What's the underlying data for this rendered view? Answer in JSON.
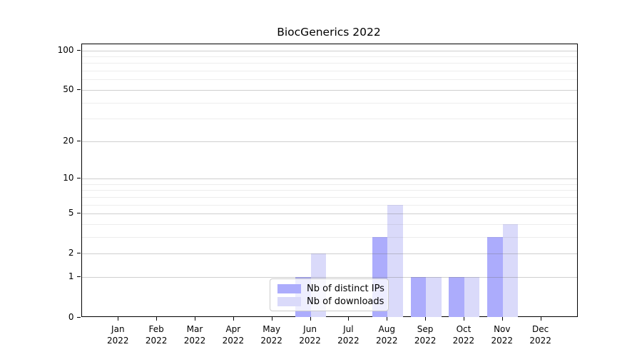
{
  "chart_data": {
    "type": "bar",
    "title": "BiocGenerics 2022",
    "categories": [
      "Jan 2022",
      "Feb 2022",
      "Mar 2022",
      "Apr 2022",
      "May 2022",
      "Jun 2022",
      "Jul 2022",
      "Aug 2022",
      "Sep 2022",
      "Oct 2022",
      "Nov 2022",
      "Dec 2022"
    ],
    "series": [
      {
        "name": "Nb of distinct IPs",
        "color": "#acacfc",
        "values": [
          0,
          0,
          0,
          0,
          0,
          1,
          0,
          3,
          1,
          1,
          3,
          0
        ]
      },
      {
        "name": "Nb of downloads",
        "color": "#dadafa",
        "values": [
          0,
          0,
          0,
          0,
          0,
          2,
          0,
          6,
          1,
          1,
          4,
          0
        ]
      }
    ],
    "xlabel": "",
    "ylabel": "",
    "y_axis": {
      "scale": "log1p",
      "major_ticks": [
        0,
        1,
        2,
        5,
        10,
        20,
        50,
        100
      ],
      "tick_labels": [
        "0",
        "1",
        "2",
        "5",
        "10",
        "20",
        "50",
        "100"
      ],
      "minor_gridlines": [
        3,
        4,
        6,
        7,
        8,
        9,
        30,
        40,
        60,
        70,
        80,
        90
      ],
      "ylim": [
        0,
        112
      ]
    },
    "grid": true,
    "legend": {
      "position": "lower center",
      "entries": [
        "Nb of distinct IPs",
        "Nb of downloads"
      ]
    },
    "colors": {
      "background": "#ffffff",
      "axis": "#000000"
    }
  }
}
